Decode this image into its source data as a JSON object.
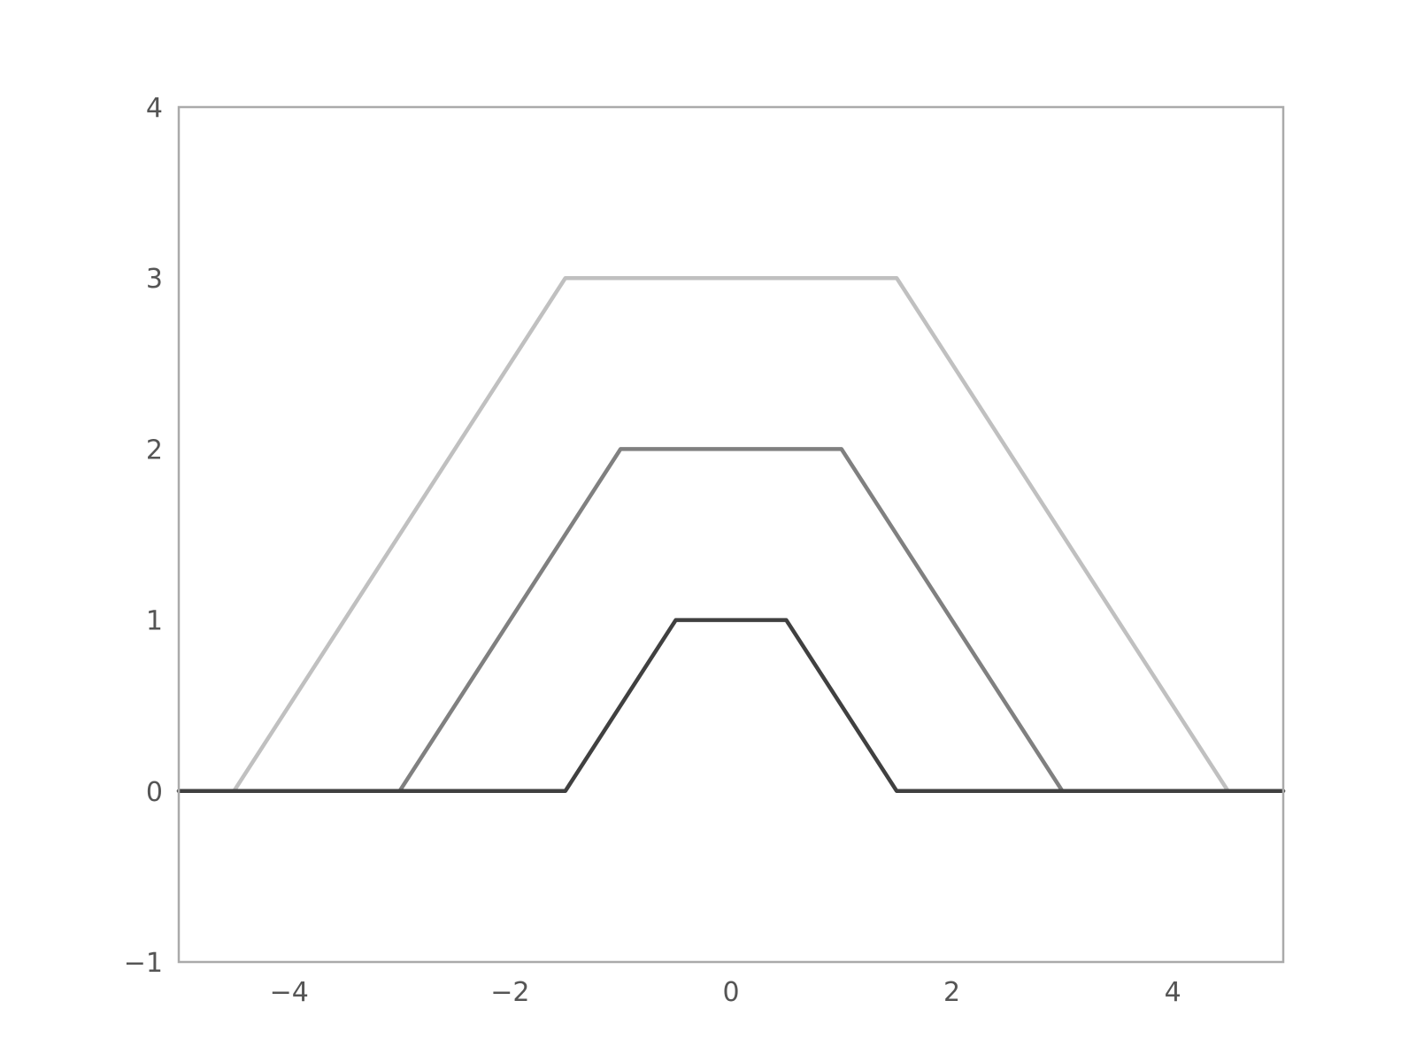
{
  "chart_data": {
    "type": "line",
    "title": "",
    "xlabel": "",
    "ylabel": "",
    "xlim": [
      -5,
      5
    ],
    "ylim": [
      -1,
      4
    ],
    "grid": false,
    "legend": "none",
    "x_ticks": [
      -4,
      -2,
      0,
      2,
      4
    ],
    "x_tick_labels": [
      "−4",
      "−2",
      "0",
      "2",
      "4"
    ],
    "y_ticks": [
      -1,
      0,
      1,
      2,
      3,
      4
    ],
    "y_tick_labels": [
      "−1",
      "0",
      "1",
      "2",
      "3",
      "4"
    ],
    "series": [
      {
        "color": "#c0c0c0",
        "x": [
          -5,
          -4.5,
          -1.5,
          1.5,
          4.5,
          5
        ],
        "y": [
          0,
          0,
          3,
          3,
          0,
          0
        ]
      },
      {
        "color": "#808080",
        "x": [
          -5,
          -3,
          -1,
          1,
          3,
          5
        ],
        "y": [
          0,
          0,
          2,
          2,
          0,
          0
        ]
      },
      {
        "color": "#404040",
        "x": [
          -5,
          -1.5,
          -0.5,
          0.5,
          1.5,
          5
        ],
        "y": [
          0,
          0,
          1,
          1,
          0,
          0
        ]
      }
    ],
    "colors": {
      "frame": "#aaaaaa",
      "tick_text": "#555555"
    }
  }
}
